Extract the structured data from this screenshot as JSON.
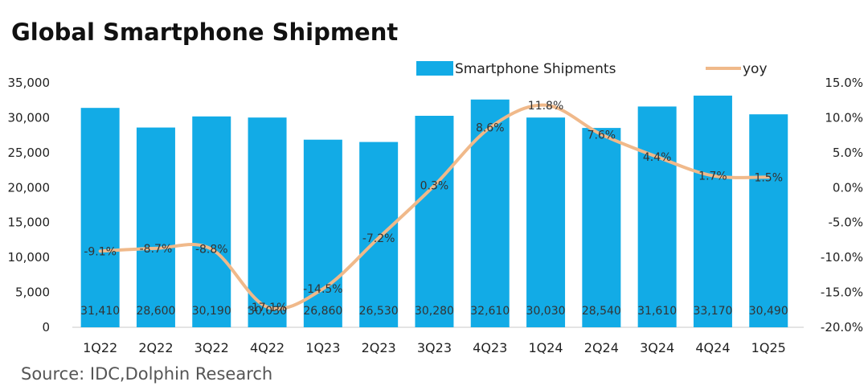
{
  "chart_data": {
    "type": "bar+line",
    "title": "Global Smartphone Shipment",
    "source": "Source: IDC,Dolphin Research",
    "categories": [
      "1Q22",
      "2Q22",
      "3Q22",
      "4Q22",
      "1Q23",
      "2Q23",
      "3Q23",
      "4Q23",
      "1Q24",
      "2Q24",
      "3Q24",
      "4Q24",
      "1Q25"
    ],
    "bar_series": {
      "name": "Smartphone Shipments",
      "values": [
        31410,
        28600,
        30190,
        30030,
        26860,
        26530,
        30280,
        32610,
        30030,
        28540,
        31610,
        33170,
        30490
      ],
      "labels": [
        "31,410",
        "28,600",
        "30,190",
        "30,030",
        "26,860",
        "26,530",
        "30,280",
        "32,610",
        "30,030",
        "28,540",
        "31,610",
        "33,170",
        "30,490"
      ],
      "color": "#12abe6"
    },
    "line_series": {
      "name": "yoy",
      "values": [
        -9.1,
        -8.7,
        -8.8,
        -17.1,
        -14.5,
        -7.2,
        0.3,
        8.6,
        11.8,
        7.6,
        4.4,
        1.7,
        1.5
      ],
      "labels": [
        "-9.1%",
        "-8.7%",
        "-8.8%",
        "-17.1%",
        "-14.5%",
        "-7.2%",
        "0.3%",
        "8.6%",
        "11.8%",
        "7.6%",
        "4.4%",
        "1.7%",
        "1.5%"
      ],
      "color": "#f0b98a"
    },
    "y_left": {
      "min": 0,
      "max": 35000,
      "ticks": [
        "0",
        "5,000",
        "10,000",
        "15,000",
        "20,000",
        "25,000",
        "30,000",
        "35,000"
      ]
    },
    "y_right": {
      "min": -20,
      "max": 15,
      "ticks": [
        "-20.0%",
        "-15.0%",
        "-10.0%",
        "-5.0%",
        "0.0%",
        "5.0%",
        "10.0%",
        "15.0%"
      ]
    },
    "legend_position": "top-right",
    "grid": false
  }
}
